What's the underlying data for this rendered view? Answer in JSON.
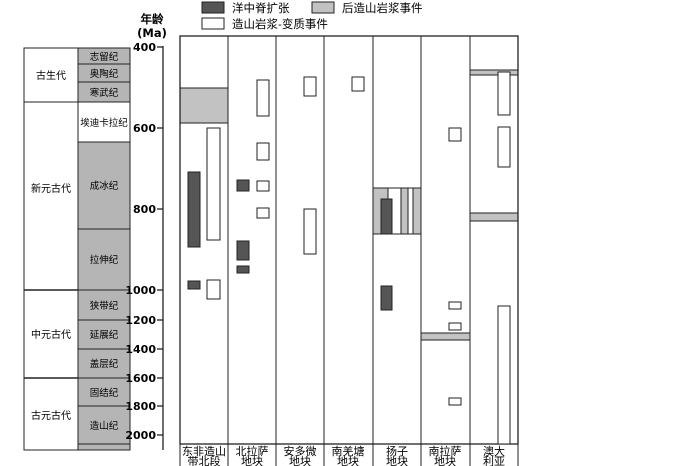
{
  "legend": [
    {
      "label": "洋中脊扩张",
      "fill": "#555555"
    },
    {
      "label": "后造山岩浆事件",
      "fill": "#c2c2c2"
    },
    {
      "label": "造山岩浆-变质事件",
      "fill": "#ffffff"
    }
  ],
  "axis": {
    "title_line1": "年龄",
    "title_line2": "(Ma)",
    "ticks": [
      "400",
      "600",
      "800",
      "1000",
      "1200",
      "1400",
      "1600",
      "1800",
      "2000"
    ]
  },
  "eras": [
    {
      "name": "古生代",
      "periods": [
        "志留纪",
        "奥陶纪",
        "寒武纪"
      ]
    },
    {
      "name": "新元古代",
      "periods": [
        "埃迪卡拉纪",
        "成冰纪",
        "拉伸纪"
      ]
    },
    {
      "name": "中元古代",
      "periods": [
        "狭带纪",
        "延展纪",
        "盖层纪"
      ]
    },
    {
      "name": "古元古代",
      "periods": [
        "固结纪",
        "造山纪"
      ]
    }
  ],
  "columns": [
    {
      "line1": "东非造山",
      "line2": "带北段"
    },
    {
      "line1": "北拉萨",
      "line2": "地块"
    },
    {
      "line1": "安多微",
      "line2": "地块"
    },
    {
      "line1": "南羌塘",
      "line2": "地块"
    },
    {
      "line1": "扬子",
      "line2": "地块"
    },
    {
      "line1": "南拉萨",
      "line2": "地块"
    },
    {
      "line1": "澳大",
      "line2": "利亚"
    }
  ],
  "colors": {
    "dark": "#555555",
    "light": "#c2c2c2",
    "period_fill": "#b5b5b5",
    "line": "#222222"
  }
}
